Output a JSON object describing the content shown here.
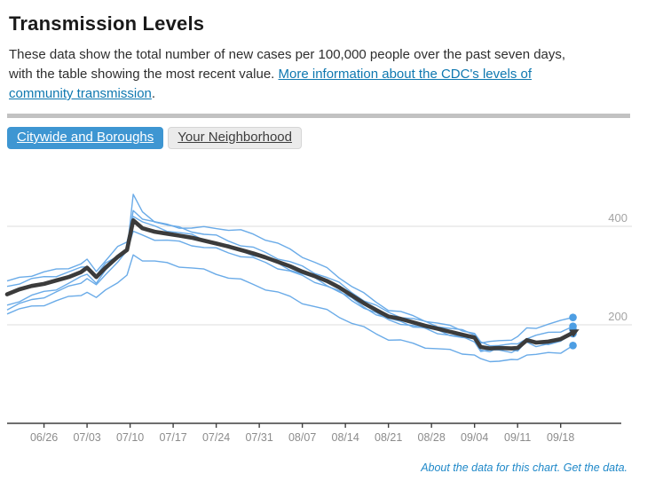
{
  "page": {
    "title": "Transmission Levels",
    "description": {
      "text_before_link": "These data show the total number of new cases per 100,000 people over the past seven days, with the table showing the most recent value. ",
      "link_text": "More information about the CDC's levels of community transmission",
      "text_after_link": "."
    },
    "tabs": [
      {
        "label": "Citywide and Boroughs",
        "active": true
      },
      {
        "label": "Your Neighborhood",
        "active": false
      }
    ],
    "footer_links": [
      {
        "label": "About the data for this chart."
      },
      {
        "label": "Get the data."
      }
    ]
  },
  "colors": {
    "accent_blue": "#3e96d2",
    "body_link_blue": "#0f78b0",
    "footer_link_blue": "#2089c9",
    "borough_line_blue": "#6aabe8",
    "endpoint_dot_blue": "#4d9ee3",
    "citywide_dark": "#3b3b3b",
    "gridline_gray": "#e3e3e3",
    "axis_dark": "#3f3f3f",
    "x_tick_label_gray": "#8c8c8c",
    "y_tick_label_gray": "#a3a3a3",
    "divider_gray": "#c2c2c2"
  },
  "chart_data": {
    "type": "line",
    "title": "",
    "xlabel": "",
    "ylabel": "new cases per 100,000 people over the past seven days",
    "ylim": [
      0,
      515
    ],
    "y_ticks": [
      200,
      400
    ],
    "grid": "horizontal-only",
    "legend": "none",
    "x_tick_labels": [
      "06/26",
      "07/03",
      "07/10",
      "07/17",
      "07/24",
      "07/31",
      "08/07",
      "08/14",
      "08/21",
      "08/28",
      "09/04",
      "09/11",
      "09/18"
    ],
    "x_tick_days": [
      6,
      13,
      20,
      27,
      34,
      41,
      48,
      55,
      62,
      69,
      76,
      83,
      90
    ],
    "days": [
      0,
      2,
      4,
      6,
      8,
      10,
      12,
      13,
      14.5,
      16,
      18,
      19.5,
      20.5,
      22,
      24,
      26,
      28,
      30,
      32,
      34,
      36,
      38,
      40,
      42,
      44,
      46,
      48,
      50,
      52,
      54,
      56,
      58,
      60,
      62,
      64,
      66,
      68,
      70,
      72,
      74,
      76,
      77,
      78.5,
      80,
      82,
      83,
      84.5,
      86,
      88,
      90,
      92
    ],
    "series": [
      {
        "name": "borough-1",
        "role": "borough",
        "end_dot": true,
        "values": [
          240,
          250,
          258,
          266,
          274,
          284,
          295,
          305,
          286,
          308,
          336,
          352,
          465,
          428,
          412,
          402,
          396,
          391,
          385,
          379,
          371,
          363,
          355,
          346,
          337,
          327,
          317,
          307,
          297,
          283,
          267,
          251,
          237,
          225,
          218,
          211,
          205,
          199,
          193,
          187,
          181,
          165,
          163,
          168,
          172,
          174,
          192,
          196,
          201,
          206,
          215
        ]
      },
      {
        "name": "borough-2",
        "role": "borough",
        "end_dot": true,
        "values": [
          230,
          241,
          250,
          258,
          266,
          276,
          287,
          295,
          278,
          303,
          330,
          348,
          432,
          418,
          408,
          402,
          399,
          397,
          396,
          397,
          394,
          390,
          384,
          375,
          364,
          352,
          340,
          327,
          313,
          297,
          280,
          262,
          246,
          232,
          225,
          217,
          210,
          203,
          196,
          190,
          184,
          162,
          158,
          161,
          159,
          160,
          175,
          178,
          182,
          188,
          197
        ]
      },
      {
        "name": "borough-3",
        "role": "borough",
        "end_dot": true,
        "values": [
          289,
          296,
          302,
          306,
          311,
          317,
          324,
          330,
          310,
          332,
          356,
          368,
          420,
          407,
          399,
          393,
          387,
          381,
          374,
          367,
          359,
          351,
          343,
          334,
          324,
          314,
          303,
          293,
          282,
          268,
          252,
          237,
          223,
          211,
          206,
          199,
          193,
          187,
          181,
          175,
          169,
          150,
          148,
          151,
          149,
          150,
          166,
          161,
          163,
          167,
          190
        ]
      },
      {
        "name": "borough-4",
        "role": "borough",
        "end_dot": true,
        "values": [
          278,
          286,
          292,
          296,
          301,
          307,
          314,
          320,
          302,
          322,
          340,
          352,
          390,
          381,
          375,
          371,
          367,
          363,
          358,
          353,
          347,
          341,
          334,
          326,
          317,
          308,
          298,
          289,
          279,
          266,
          251,
          236,
          222,
          210,
          204,
          197,
          191,
          185,
          179,
          173,
          167,
          148,
          146,
          149,
          147,
          148,
          163,
          159,
          161,
          164,
          182
        ]
      },
      {
        "name": "borough-5",
        "role": "borough",
        "end_dot": true,
        "values": [
          222,
          230,
          237,
          242,
          248,
          255,
          262,
          267,
          252,
          272,
          288,
          298,
          342,
          333,
          328,
          324,
          320,
          316,
          310,
          304,
          297,
          290,
          282,
          274,
          265,
          256,
          246,
          237,
          228,
          217,
          205,
          193,
          182,
          172,
          167,
          161,
          156,
          151,
          147,
          143,
          140,
          128,
          126,
          129,
          127,
          128,
          142,
          139,
          141,
          145,
          158
        ]
      },
      {
        "name": "citywide",
        "role": "emphasis",
        "end_arrow": true,
        "values": [
          262,
          272,
          279,
          283,
          290,
          297,
          307,
          316,
          297,
          316,
          338,
          352,
          412,
          396,
          389,
          385,
          381,
          377,
          371,
          365,
          359,
          352,
          345,
          337,
          328,
          319,
          308,
          299,
          289,
          276,
          260,
          244,
          230,
          217,
          212,
          205,
          198,
          192,
          186,
          180,
          174,
          155,
          152,
          153,
          152,
          153,
          169,
          164,
          166,
          171,
          184
        ]
      }
    ]
  }
}
